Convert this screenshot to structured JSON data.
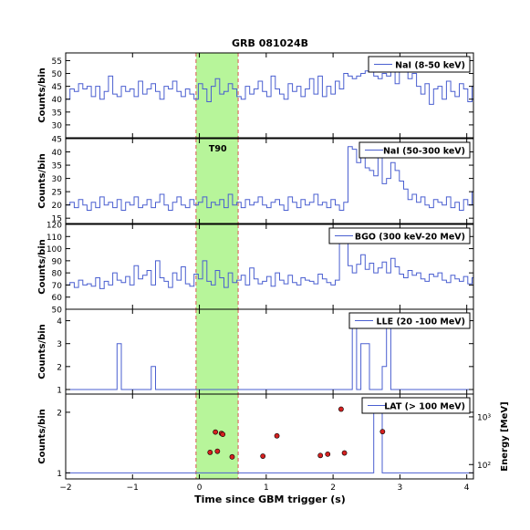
{
  "chart_data": {
    "type": "line",
    "title": "GRB 081024B",
    "xlabel": "Time since GBM trigger (s)",
    "xlim": [
      -2,
      4.1
    ],
    "xticks": [
      -2,
      -1,
      0,
      1,
      2,
      3,
      4
    ],
    "x_tick_labels": [
      "−2",
      "−1",
      "0",
      "1",
      "2",
      "3",
      "4"
    ],
    "bin_width": 0.064,
    "shaded_interval": {
      "start": -0.05,
      "end": 0.58,
      "label": "T90",
      "color": "#b7f59a",
      "edge_color": "#d9534f"
    },
    "line_color": "#4a5fd0",
    "panels": [
      {
        "legend": "NaI (8-50 keV)",
        "ylabel": "Counts/bin",
        "ylim": [
          25,
          58
        ],
        "yticks": [
          30,
          35,
          40,
          45,
          50,
          55
        ],
        "values": [
          40,
          44,
          43,
          46,
          44,
          45,
          41,
          45,
          40,
          43,
          49,
          42,
          41,
          45,
          43,
          44,
          41,
          47,
          42,
          44,
          46,
          43,
          40,
          45,
          44,
          47,
          43,
          41,
          44,
          42,
          40,
          46,
          44,
          39,
          45,
          48,
          42,
          43,
          46,
          44,
          41,
          40,
          45,
          42,
          44,
          47,
          43,
          41,
          49,
          44,
          42,
          40,
          46,
          43,
          45,
          41,
          44,
          48,
          42,
          49,
          41,
          45,
          42,
          47,
          44,
          50,
          49,
          48,
          49,
          50,
          51,
          52,
          49,
          48,
          50,
          49,
          51,
          46,
          52,
          53,
          48,
          50,
          45,
          42,
          46,
          38,
          44,
          45,
          40,
          47,
          43,
          41,
          46,
          44,
          39,
          45,
          46,
          42,
          44,
          43,
          47,
          44,
          41,
          45,
          42,
          44,
          41,
          46,
          43,
          45,
          44,
          41,
          43,
          42,
          46,
          44,
          45,
          43,
          42,
          44,
          41,
          46,
          45,
          43,
          44,
          42,
          45,
          44,
          41,
          43,
          46,
          44,
          42,
          43,
          45,
          44,
          43,
          46,
          44,
          42,
          43,
          45,
          44,
          41,
          43,
          46,
          44,
          42,
          45,
          44,
          43,
          44,
          46,
          44,
          42,
          45,
          43,
          46,
          44,
          45,
          44
        ]
      },
      {
        "legend": "NaI (50-300 keV)",
        "ylabel": "Counts/bin",
        "ylim": [
          13,
          45
        ],
        "yticks": [
          15,
          20,
          25,
          30,
          35,
          40,
          45
        ],
        "values": [
          20,
          21,
          19,
          22,
          20,
          18,
          21,
          19,
          23,
          20,
          21,
          19,
          22,
          18,
          21,
          20,
          23,
          19,
          20,
          22,
          19,
          21,
          24,
          20,
          18,
          21,
          23,
          20,
          19,
          22,
          20,
          21,
          23,
          19,
          21,
          20,
          22,
          19,
          24,
          20,
          21,
          19,
          22,
          20,
          21,
          23,
          20,
          19,
          21,
          22,
          20,
          18,
          23,
          21,
          19,
          22,
          20,
          21,
          24,
          20,
          21,
          19,
          22,
          20,
          18,
          21,
          42,
          41,
          36,
          40,
          34,
          33,
          31,
          39,
          28,
          30,
          36,
          33,
          29,
          26,
          22,
          24,
          21,
          23,
          20,
          19,
          22,
          21,
          20,
          23,
          19,
          21,
          18,
          22,
          20,
          25,
          21,
          19,
          20,
          22,
          18,
          21,
          23,
          20,
          19,
          22,
          24,
          20,
          21,
          19,
          22,
          20,
          21,
          23,
          18,
          20,
          21,
          22,
          19,
          21,
          20,
          24,
          21,
          19,
          22,
          20,
          18,
          21,
          25,
          20,
          19,
          22,
          21,
          20,
          23,
          19,
          21,
          22,
          20,
          21,
          19,
          23,
          20,
          22,
          21,
          20,
          19,
          22,
          21,
          20,
          23,
          19,
          21,
          20,
          22,
          21,
          19,
          22,
          20,
          21,
          20
        ]
      },
      {
        "legend": "BGO (300 keV-20 MeV)",
        "ylabel": "Counts/bin",
        "ylim": [
          50,
          120
        ],
        "yticks": [
          50,
          60,
          70,
          80,
          90,
          100,
          110,
          120
        ],
        "values": [
          70,
          72,
          68,
          74,
          70,
          71,
          69,
          76,
          67,
          73,
          70,
          80,
          74,
          72,
          77,
          70,
          86,
          75,
          78,
          82,
          70,
          90,
          76,
          73,
          68,
          80,
          74,
          85,
          71,
          69,
          79,
          75,
          90,
          73,
          70,
          82,
          76,
          68,
          80,
          72,
          74,
          78,
          70,
          84,
          75,
          71,
          73,
          77,
          69,
          80,
          74,
          71,
          78,
          72,
          70,
          76,
          74,
          73,
          71,
          79,
          75,
          72,
          70,
          74,
          106,
          112,
          86,
          80,
          87,
          95,
          83,
          88,
          80,
          84,
          89,
          80,
          92,
          85,
          79,
          76,
          82,
          78,
          80,
          75,
          73,
          79,
          77,
          80,
          74,
          72,
          78,
          75,
          73,
          77,
          71,
          76,
          74,
          70,
          73,
          77,
          72,
          79,
          75,
          70,
          74,
          76,
          72,
          78,
          73,
          71,
          75,
          77,
          70,
          74,
          72,
          69,
          76,
          73,
          71,
          75,
          72,
          78,
          70,
          73,
          76,
          74,
          71,
          77,
          72,
          70,
          75,
          73,
          79,
          71,
          74,
          72,
          76,
          73,
          70,
          78,
          74,
          71,
          75,
          72,
          77,
          73,
          70,
          76,
          74,
          72,
          75,
          71,
          78,
          73,
          76,
          74,
          72,
          70,
          75,
          73,
          77
        ]
      },
      {
        "legend": "LLE (20 -100 MeV)",
        "ylabel": "Counts/bin",
        "ylim": [
          0.8,
          4.5
        ],
        "yticks": [
          1,
          2,
          3,
          4
        ],
        "values": [
          1,
          1,
          1,
          1,
          1,
          1,
          1,
          1,
          1,
          1,
          1,
          1,
          3,
          1,
          1,
          1,
          1,
          1,
          1,
          1,
          2,
          1,
          1,
          1,
          1,
          1,
          1,
          1,
          1,
          1,
          1,
          1,
          1,
          1,
          1,
          1,
          1,
          1,
          1,
          1,
          1,
          1,
          1,
          1,
          1,
          1,
          1,
          1,
          1,
          1,
          1,
          1,
          1,
          1,
          1,
          1,
          1,
          1,
          1,
          1,
          1,
          1,
          1,
          1,
          1,
          1,
          1,
          4,
          1,
          3,
          3,
          1,
          1,
          1,
          2,
          4,
          1,
          1,
          1,
          1,
          1,
          1,
          1,
          1,
          1,
          1,
          1,
          1,
          1,
          1,
          1,
          1,
          1,
          1,
          1,
          1,
          1,
          1,
          1,
          1,
          1,
          1,
          1,
          1,
          1,
          1,
          1,
          1,
          1,
          1,
          1,
          1,
          1,
          1,
          1,
          1,
          1,
          1,
          1,
          1,
          1,
          1,
          1,
          2,
          1,
          1,
          1,
          1,
          1,
          1,
          1,
          1,
          1,
          1,
          1,
          1,
          1,
          1,
          1,
          2,
          1,
          1,
          2,
          1,
          1,
          1,
          1,
          1,
          1,
          1,
          1,
          1,
          1,
          1,
          1,
          1,
          1,
          1,
          1,
          1,
          1
        ]
      },
      {
        "legend": "LAT (> 100 MeV)",
        "ylabel": "Counts/bin",
        "ylim": [
          0.9,
          2.3
        ],
        "yticks": [
          1,
          2
        ],
        "values": [
          1,
          1,
          1,
          1,
          1,
          1,
          1,
          1,
          1,
          1,
          1,
          1,
          1,
          1,
          1,
          1,
          1,
          1,
          1,
          1,
          1,
          1,
          1,
          1,
          1,
          1,
          1,
          1,
          1,
          1,
          1,
          1,
          1,
          1,
          1,
          1,
          1,
          1,
          1,
          1,
          1,
          1,
          1,
          1,
          1,
          1,
          1,
          1,
          1,
          1,
          1,
          1,
          1,
          1,
          1,
          1,
          1,
          1,
          1,
          1,
          1,
          1,
          1,
          1,
          1,
          1,
          1,
          1,
          1,
          1,
          1,
          1,
          2,
          2,
          1,
          1,
          1,
          1,
          1,
          1,
          1,
          1,
          1,
          1,
          1,
          1,
          1,
          1,
          1,
          1,
          1,
          1,
          1,
          1,
          1,
          1,
          1,
          1,
          1,
          1,
          1,
          1,
          1,
          1,
          1,
          1,
          1,
          1,
          1,
          1,
          1,
          1,
          1,
          1,
          1,
          1,
          1,
          1,
          1,
          1,
          1,
          1,
          1,
          1,
          1,
          1,
          1,
          1,
          1,
          1,
          1,
          1,
          1,
          1,
          1,
          1,
          1,
          1,
          1,
          1,
          1,
          1,
          1,
          1,
          1,
          1,
          1,
          1,
          1,
          1,
          1,
          1,
          1,
          1,
          1,
          1,
          1,
          1,
          1,
          1,
          1
        ],
        "secondary_axis": {
          "ylabel": "Energy [MeV]",
          "scale": "log",
          "ylim": [
            50,
            3000
          ],
          "tick_labels": [
            "10²",
            "10³"
          ],
          "tick_values": [
            100,
            1000
          ]
        },
        "photons": [
          {
            "t": 0.16,
            "energy": 180
          },
          {
            "t": 0.24,
            "energy": 480
          },
          {
            "t": 0.27,
            "energy": 190
          },
          {
            "t": 0.33,
            "energy": 450
          },
          {
            "t": 0.35,
            "energy": 430
          },
          {
            "t": 0.49,
            "energy": 145
          },
          {
            "t": 0.95,
            "energy": 150
          },
          {
            "t": 1.16,
            "energy": 400
          },
          {
            "t": 1.81,
            "energy": 155
          },
          {
            "t": 1.92,
            "energy": 165
          },
          {
            "t": 2.12,
            "energy": 1450
          },
          {
            "t": 2.17,
            "energy": 175
          },
          {
            "t": 2.74,
            "energy": 490
          }
        ],
        "photon_color": "#d42020"
      }
    ]
  }
}
